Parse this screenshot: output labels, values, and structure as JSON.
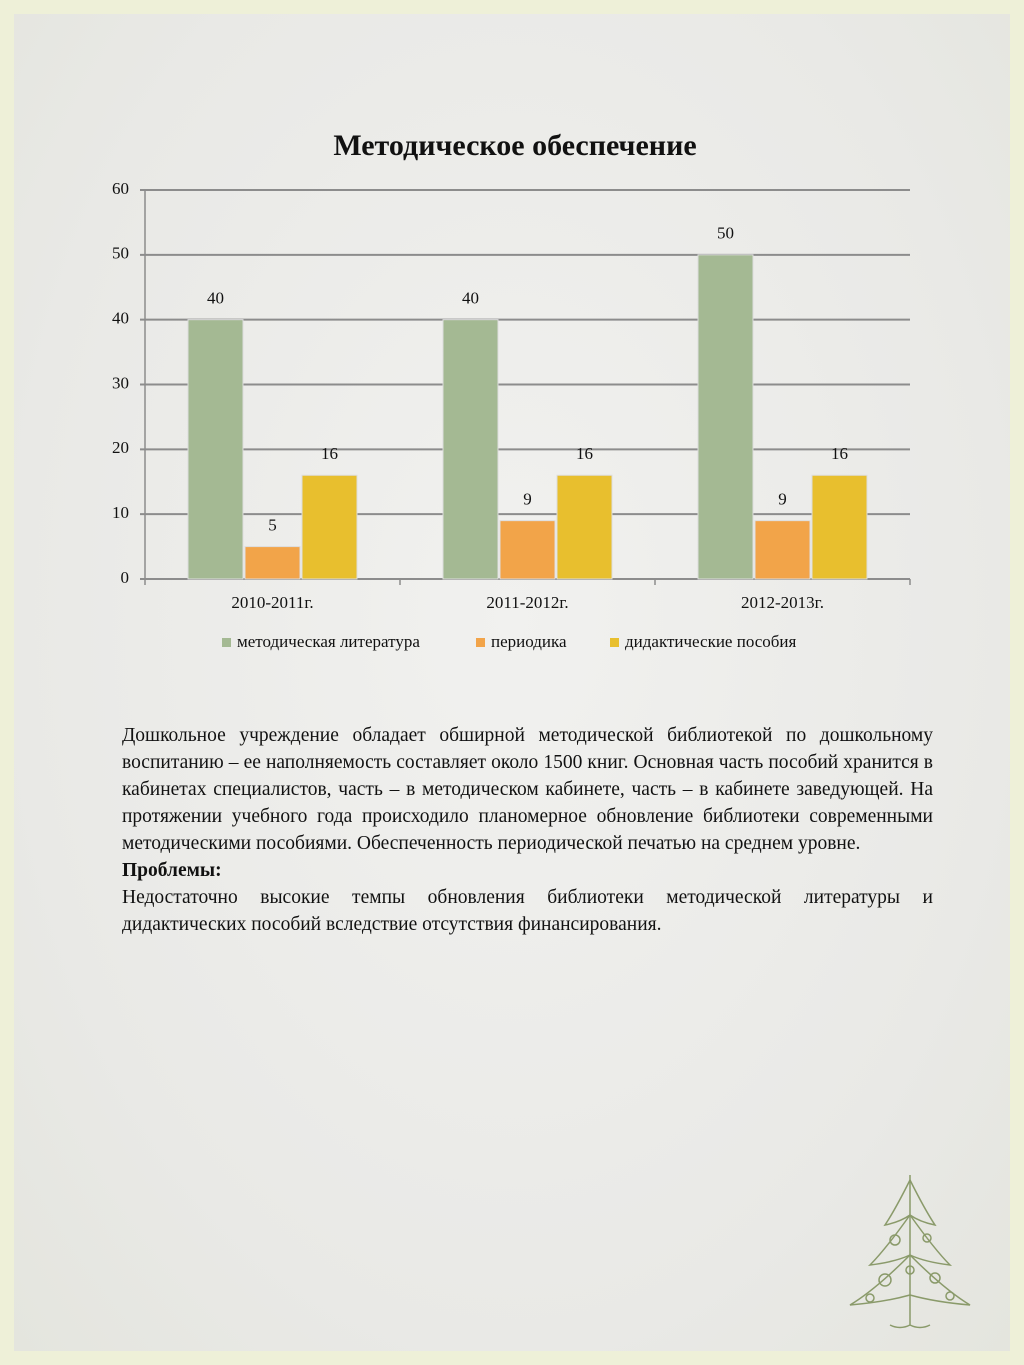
{
  "chart_data": {
    "type": "bar",
    "title": "Методическое обеспечение",
    "categories": [
      "2010-2011г.",
      "2011-2012г.",
      "2012-2013г."
    ],
    "series": [
      {
        "name": "методическая литература",
        "color": "#a4b993",
        "values": [
          40,
          40,
          50
        ]
      },
      {
        "name": "периодика",
        "color": "#f2a449",
        "values": [
          5,
          9,
          9
        ]
      },
      {
        "name": "дидактические пособия",
        "color": "#e8bf2e",
        "values": [
          16,
          16,
          16
        ]
      }
    ],
    "ylim": [
      0,
      60
    ],
    "yticks": [
      0,
      10,
      20,
      30,
      40,
      50,
      60
    ],
    "grid": true,
    "legend": "bottom"
  },
  "text": {
    "paragraph": "Дошкольное учреждение обладает обширной методической библиотекой по дошкольному воспитанию – ее наполняемость составляет около 1500 книг. Основная часть пособий хранится в кабинетах специалистов, часть – в методическом кабинете, часть – в кабинете заведующей. На протяжении учебного года происходило планомерное обновление библиотеки современными методическими пособиями. Обеспеченность периодической печатью на среднем уровне.",
    "heading": "Проблемы:",
    "problems": "Недостаточно высокие темпы обновления библиотеки методической литературы и дидактических пособий вследствие отсутствия финансирования."
  }
}
